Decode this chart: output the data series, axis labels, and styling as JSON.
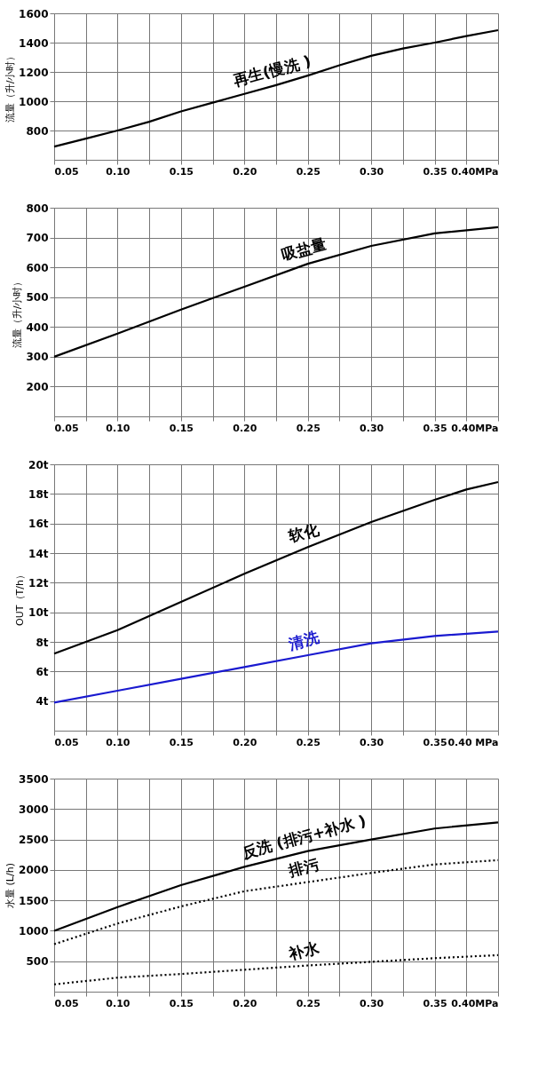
{
  "chart_data": [
    {
      "type": "line",
      "ylabel": "流量（升/小时）",
      "grid": true,
      "legend": false,
      "xlim": [
        0.05,
        0.4
      ],
      "ylim": [
        600,
        1600
      ],
      "xticks": [
        {
          "value": 0.05,
          "label": "0.05"
        },
        {
          "value": 0.075,
          "label": null
        },
        {
          "value": 0.1,
          "label": "0.10"
        },
        {
          "value": 0.125,
          "label": null
        },
        {
          "value": 0.15,
          "label": "0.15"
        },
        {
          "value": 0.175,
          "label": null
        },
        {
          "value": 0.2,
          "label": "0.20"
        },
        {
          "value": 0.225,
          "label": null
        },
        {
          "value": 0.25,
          "label": "0.25"
        },
        {
          "value": 0.275,
          "label": null
        },
        {
          "value": 0.3,
          "label": "0.30"
        },
        {
          "value": 0.325,
          "label": null
        },
        {
          "value": 0.35,
          "label": "0.35"
        },
        {
          "value": 0.375,
          "label": null
        },
        {
          "value": 0.4,
          "label": "0.40MPa"
        }
      ],
      "yticks": [
        800,
        1000,
        1200,
        1400,
        1600
      ],
      "x": [
        0.05,
        0.075,
        0.1,
        0.125,
        0.15,
        0.175,
        0.2,
        0.225,
        0.25,
        0.275,
        0.3,
        0.325,
        0.35,
        0.375,
        0.4
      ],
      "series": [
        {
          "name": "再生(慢洗 )",
          "color": "#000000",
          "line_style": "solid",
          "values": [
            690,
            745,
            800,
            860,
            930,
            990,
            1050,
            1110,
            1175,
            1245,
            1310,
            1360,
            1400,
            1445,
            1485
          ]
        }
      ]
    },
    {
      "type": "line",
      "ylabel": "流量（升/小时）",
      "grid": true,
      "legend": false,
      "xlim": [
        0.05,
        0.4
      ],
      "ylim": [
        100,
        800
      ],
      "xticks": [
        {
          "value": 0.05,
          "label": "0.05"
        },
        {
          "value": 0.075,
          "label": null
        },
        {
          "value": 0.1,
          "label": "0.10"
        },
        {
          "value": 0.125,
          "label": null
        },
        {
          "value": 0.15,
          "label": "0.15"
        },
        {
          "value": 0.175,
          "label": null
        },
        {
          "value": 0.2,
          "label": "0.20"
        },
        {
          "value": 0.225,
          "label": null
        },
        {
          "value": 0.25,
          "label": "0.25"
        },
        {
          "value": 0.275,
          "label": null
        },
        {
          "value": 0.3,
          "label": "0.30"
        },
        {
          "value": 0.325,
          "label": null
        },
        {
          "value": 0.35,
          "label": "0.35"
        },
        {
          "value": 0.375,
          "label": null
        },
        {
          "value": 0.4,
          "label": "0.40MPa"
        }
      ],
      "yticks": [
        200,
        300,
        400,
        500,
        600,
        700,
        800
      ],
      "x": [
        0.05,
        0.1,
        0.15,
        0.2,
        0.25,
        0.3,
        0.35,
        0.4
      ],
      "series": [
        {
          "name": "吸盐量",
          "color": "#000000",
          "line_style": "solid",
          "values": [
            300,
            378,
            458,
            535,
            612,
            672,
            714,
            735
          ]
        }
      ]
    },
    {
      "type": "line",
      "ylabel": "OUT（T/h）",
      "grid": true,
      "legend": false,
      "xlim": [
        0.05,
        0.4
      ],
      "ylim": [
        2,
        20
      ],
      "xticks": [
        {
          "value": 0.05,
          "label": "0.05"
        },
        {
          "value": 0.075,
          "label": null
        },
        {
          "value": 0.1,
          "label": "0.10"
        },
        {
          "value": 0.125,
          "label": null
        },
        {
          "value": 0.15,
          "label": "0.15"
        },
        {
          "value": 0.175,
          "label": null
        },
        {
          "value": 0.2,
          "label": "0.20"
        },
        {
          "value": 0.225,
          "label": null
        },
        {
          "value": 0.25,
          "label": "0.25"
        },
        {
          "value": 0.275,
          "label": null
        },
        {
          "value": 0.3,
          "label": "0.30"
        },
        {
          "value": 0.325,
          "label": null
        },
        {
          "value": 0.35,
          "label": "0.35"
        },
        {
          "value": 0.375,
          "label": null
        },
        {
          "value": 0.4,
          "label": "0.40 MPa"
        }
      ],
      "yticks": [
        {
          "value": 4,
          "label": "4t"
        },
        {
          "value": 6,
          "label": "6t"
        },
        {
          "value": 8,
          "label": "8t"
        },
        {
          "value": 10,
          "label": "10t"
        },
        {
          "value": 12,
          "label": "12t"
        },
        {
          "value": 14,
          "label": "14t"
        },
        {
          "value": 16,
          "label": "16t"
        },
        {
          "value": 18,
          "label": "18t"
        },
        {
          "value": 20,
          "label": "20t"
        }
      ],
      "x": [
        0.05,
        0.075,
        0.1,
        0.15,
        0.2,
        0.25,
        0.3,
        0.35,
        0.375,
        0.4
      ],
      "series": [
        {
          "name": "软化",
          "color": "#000000",
          "line_style": "solid",
          "values": [
            7.2,
            8.0,
            8.8,
            10.7,
            12.6,
            14.4,
            16.1,
            17.6,
            18.3,
            18.8
          ]
        },
        {
          "name": "清洗",
          "color": "#1a1ad0",
          "line_style": "solid",
          "x": [
            0.05,
            0.1,
            0.15,
            0.2,
            0.25,
            0.3,
            0.35,
            0.4
          ],
          "values": [
            3.9,
            4.7,
            5.5,
            6.3,
            7.1,
            7.9,
            8.4,
            8.7
          ]
        }
      ]
    },
    {
      "type": "line",
      "ylabel": "水量 (L/h)",
      "grid": true,
      "legend": false,
      "xlim": [
        0.05,
        0.4
      ],
      "ylim": [
        0,
        3500
      ],
      "xticks": [
        {
          "value": 0.05,
          "label": "0.05"
        },
        {
          "value": 0.075,
          "label": null
        },
        {
          "value": 0.1,
          "label": "0.10"
        },
        {
          "value": 0.125,
          "label": null
        },
        {
          "value": 0.15,
          "label": "0.15"
        },
        {
          "value": 0.175,
          "label": null
        },
        {
          "value": 0.2,
          "label": "0.20"
        },
        {
          "value": 0.225,
          "label": null
        },
        {
          "value": 0.25,
          "label": "0.25"
        },
        {
          "value": 0.275,
          "label": null
        },
        {
          "value": 0.3,
          "label": "0.30"
        },
        {
          "value": 0.325,
          "label": null
        },
        {
          "value": 0.35,
          "label": "0.35"
        },
        {
          "value": 0.375,
          "label": null
        },
        {
          "value": 0.4,
          "label": "0.40MPa"
        }
      ],
      "yticks": [
        500,
        1000,
        1500,
        2000,
        2500,
        3000,
        3500
      ],
      "x": [
        0.05,
        0.1,
        0.15,
        0.2,
        0.25,
        0.3,
        0.35,
        0.4
      ],
      "series": [
        {
          "name": "反洗 (排污+补水 )",
          "color": "#000000",
          "line_style": "solid",
          "values": [
            1000,
            1390,
            1750,
            2050,
            2310,
            2500,
            2680,
            2780
          ]
        },
        {
          "name": "排污",
          "color": "#000000",
          "line_style": "dotted",
          "values": [
            780,
            1120,
            1400,
            1650,
            1800,
            1950,
            2090,
            2160
          ]
        },
        {
          "name": "补水",
          "color": "#000000",
          "line_style": "dotted",
          "values": [
            120,
            230,
            290,
            360,
            430,
            490,
            550,
            600
          ]
        }
      ]
    }
  ]
}
